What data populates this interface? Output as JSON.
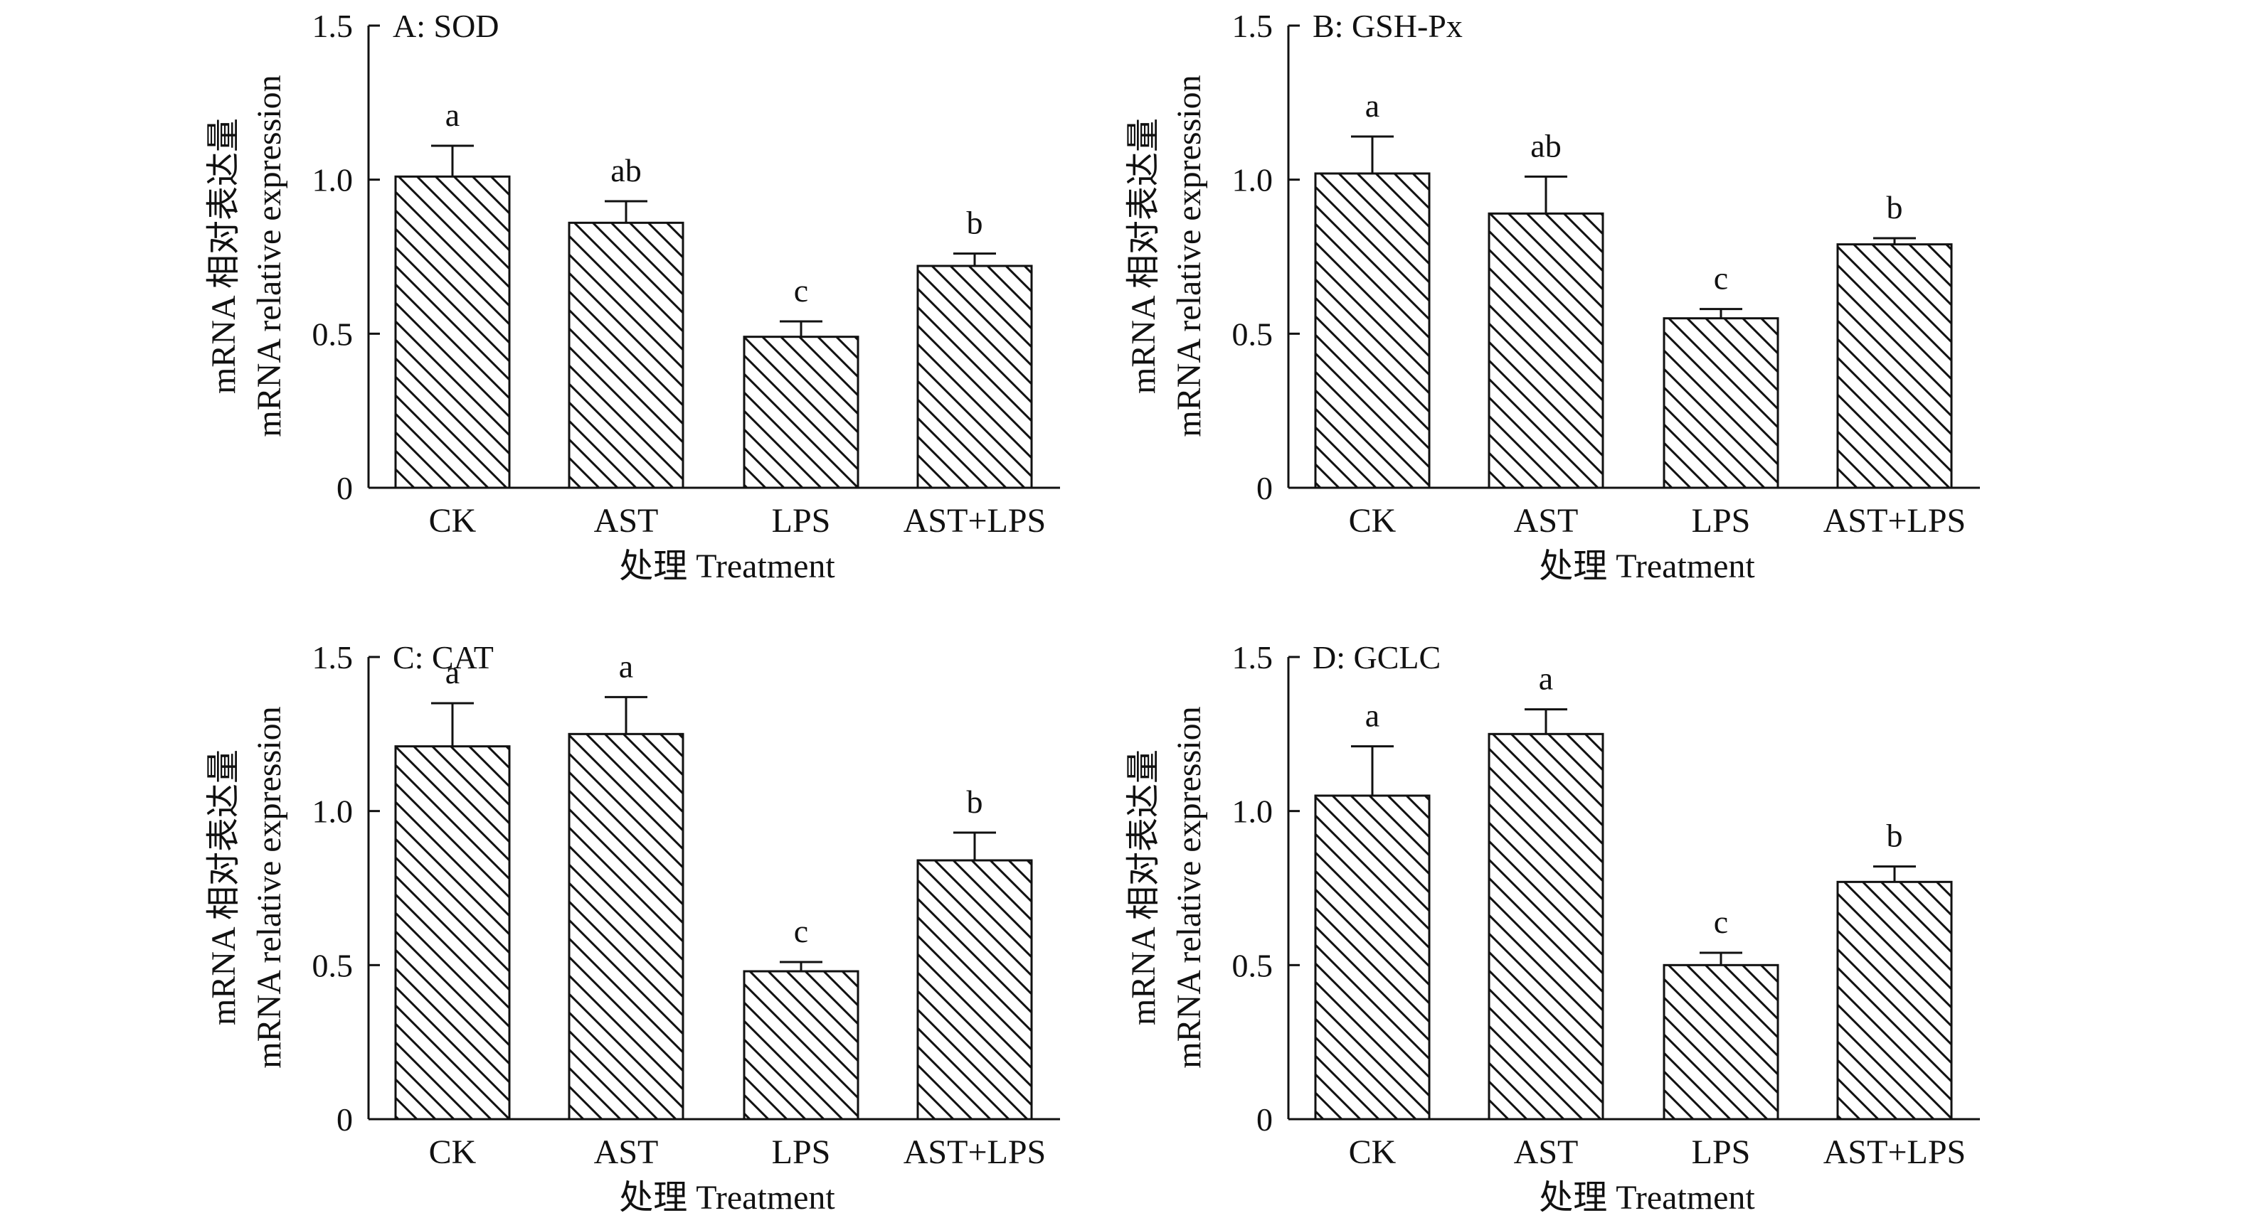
{
  "figure": {
    "panels": [
      "A: SOD",
      "B: GSH-Px",
      "C: CAT",
      "D: GCLC"
    ]
  },
  "chart_data": [
    {
      "type": "bar",
      "panel_label": "A: SOD",
      "categories": [
        "CK",
        "AST",
        "LPS",
        "AST+LPS"
      ],
      "values": [
        1.01,
        0.86,
        0.49,
        0.72
      ],
      "errors": [
        0.1,
        0.07,
        0.05,
        0.04
      ],
      "significance": [
        "a",
        "ab",
        "c",
        "b"
      ],
      "ylabel_lines": [
        "mRNA 相对表达量",
        "mRNA relative expression"
      ],
      "xlabel": "处理 Treatment",
      "ylim": [
        0,
        1.5
      ],
      "yticks": [
        0,
        0.5,
        1.0,
        1.5
      ],
      "ytick_labels": [
        "0",
        "0.5",
        "1.0",
        "1.5"
      ],
      "bar_fill": "hatched diagonal",
      "colors": {
        "bar_outline": "#111111",
        "hatch": "#111111",
        "background": "#ffffff"
      }
    },
    {
      "type": "bar",
      "panel_label": "B: GSH-Px",
      "categories": [
        "CK",
        "AST",
        "LPS",
        "AST+LPS"
      ],
      "values": [
        1.02,
        0.89,
        0.55,
        0.79
      ],
      "errors": [
        0.12,
        0.12,
        0.03,
        0.02
      ],
      "significance": [
        "a",
        "ab",
        "c",
        "b"
      ],
      "ylabel_lines": [
        "mRNA 相对表达量",
        "mRNA relative expression"
      ],
      "xlabel": "处理 Treatment",
      "ylim": [
        0,
        1.5
      ],
      "yticks": [
        0,
        0.5,
        1.0,
        1.5
      ],
      "ytick_labels": [
        "0",
        "0.5",
        "1.0",
        "1.5"
      ],
      "bar_fill": "hatched diagonal",
      "colors": {
        "bar_outline": "#111111",
        "hatch": "#111111",
        "background": "#ffffff"
      }
    },
    {
      "type": "bar",
      "panel_label": "C: CAT",
      "categories": [
        "CK",
        "AST",
        "LPS",
        "AST+LPS"
      ],
      "values": [
        1.21,
        1.25,
        0.48,
        0.84
      ],
      "errors": [
        0.14,
        0.12,
        0.03,
        0.09
      ],
      "significance": [
        "a",
        "a",
        "c",
        "b"
      ],
      "ylabel_lines": [
        "mRNA 相对表达量",
        "mRNA relative expression"
      ],
      "xlabel": "处理 Treatment",
      "ylim": [
        0,
        1.5
      ],
      "yticks": [
        0,
        0.5,
        1.0,
        1.5
      ],
      "ytick_labels": [
        "0",
        "0.5",
        "1.0",
        "1.5"
      ],
      "bar_fill": "hatched diagonal",
      "colors": {
        "bar_outline": "#111111",
        "hatch": "#111111",
        "background": "#ffffff"
      }
    },
    {
      "type": "bar",
      "panel_label": "D: GCLC",
      "categories": [
        "CK",
        "AST",
        "LPS",
        "AST+LPS"
      ],
      "values": [
        1.05,
        1.25,
        0.5,
        0.77
      ],
      "errors": [
        0.16,
        0.08,
        0.04,
        0.05
      ],
      "significance": [
        "a",
        "a",
        "c",
        "b"
      ],
      "ylabel_lines": [
        "mRNA 相对表达量",
        "mRNA relative expression"
      ],
      "xlabel": "处理 Treatment",
      "ylim": [
        0,
        1.5
      ],
      "yticks": [
        0,
        0.5,
        1.0,
        1.5
      ],
      "ytick_labels": [
        "0",
        "0.5",
        "1.0",
        "1.5"
      ],
      "bar_fill": "hatched diagonal",
      "colors": {
        "bar_outline": "#111111",
        "hatch": "#111111",
        "background": "#ffffff"
      }
    }
  ]
}
